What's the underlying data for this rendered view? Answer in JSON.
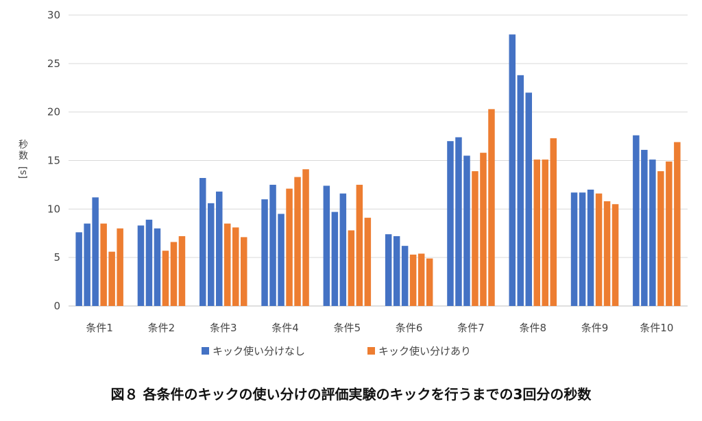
{
  "caption": "図８ 各条件のキックの使い分けの評価実験のキックを行うまでの3回分の秒数",
  "chart_data": {
    "type": "bar",
    "title": "",
    "xlabel": "",
    "ylabel": "秒数",
    "yunit": "[s]",
    "ylim": [
      0,
      30
    ],
    "yticks": [
      0,
      5,
      10,
      15,
      20,
      25,
      30
    ],
    "grid": true,
    "legend_position": "bottom",
    "categories": [
      "条件1",
      "条件2",
      "条件3",
      "条件4",
      "条件5",
      "条件6",
      "条件7",
      "条件8",
      "条件9",
      "条件10"
    ],
    "series": [
      {
        "name": "キック使い分けなし",
        "color": "#4472C4",
        "values": [
          [
            7.6,
            8.5,
            11.2
          ],
          [
            8.3,
            8.9,
            8.0
          ],
          [
            13.2,
            10.6,
            11.8
          ],
          [
            11.0,
            12.5,
            9.5
          ],
          [
            12.4,
            9.7,
            11.6
          ],
          [
            7.4,
            7.2,
            6.2
          ],
          [
            17.0,
            17.4,
            15.5
          ],
          [
            28.0,
            23.8,
            22.0
          ],
          [
            11.7,
            11.7,
            12.0
          ],
          [
            17.6,
            16.1,
            15.1
          ]
        ]
      },
      {
        "name": "キック使い分けあり",
        "color": "#ED7D31",
        "values": [
          [
            8.5,
            5.6,
            8.0
          ],
          [
            5.7,
            6.6,
            7.2
          ],
          [
            8.5,
            8.1,
            7.1
          ],
          [
            12.1,
            13.3,
            14.1
          ],
          [
            7.8,
            12.5,
            9.1
          ],
          [
            5.3,
            5.4,
            4.9
          ],
          [
            13.9,
            15.8,
            20.3
          ],
          [
            15.1,
            15.1,
            17.3
          ],
          [
            11.6,
            10.8,
            10.5
          ],
          [
            13.9,
            14.9,
            16.9
          ]
        ]
      }
    ]
  }
}
